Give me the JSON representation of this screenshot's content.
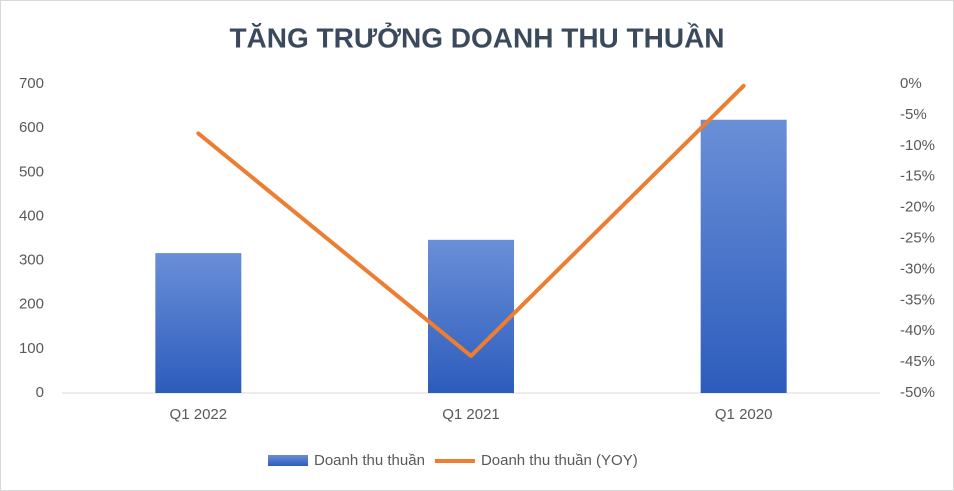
{
  "chart_data": {
    "type": "combo",
    "title": "TĂNG TRƯỞNG DOANH THU THUẦN",
    "categories": [
      "Q1 2022",
      "Q1 2021",
      "Q1 2020"
    ],
    "series": [
      {
        "name": "Doanh thu thuần",
        "type": "bar",
        "color": "#4472c4",
        "values": [
          317,
          347,
          619
        ]
      },
      {
        "name": "Doanh thu thuần (YOY)",
        "type": "line",
        "axis": "y2",
        "color": "#ed7d31",
        "values": [
          -8,
          -44,
          -0.3
        ]
      }
    ],
    "ylim": [
      0,
      700
    ],
    "yticks": [
      0,
      100,
      200,
      300,
      400,
      500,
      600,
      700
    ],
    "y2lim": [
      -50,
      0
    ],
    "y2ticks": [
      {
        "value": 0,
        "label": "0%"
      },
      {
        "value": -5,
        "label": "-5%"
      },
      {
        "value": -10,
        "label": "-10%"
      },
      {
        "value": -15,
        "label": "-15%"
      },
      {
        "value": -20,
        "label": "-20%"
      },
      {
        "value": -25,
        "label": "-25%"
      },
      {
        "value": -30,
        "label": "-30%"
      },
      {
        "value": -35,
        "label": "-35%"
      },
      {
        "value": -40,
        "label": "-40%"
      },
      {
        "value": -45,
        "label": "-45%"
      },
      {
        "value": -50,
        "label": "-50%"
      }
    ],
    "grid": false,
    "legend": "bottom"
  }
}
